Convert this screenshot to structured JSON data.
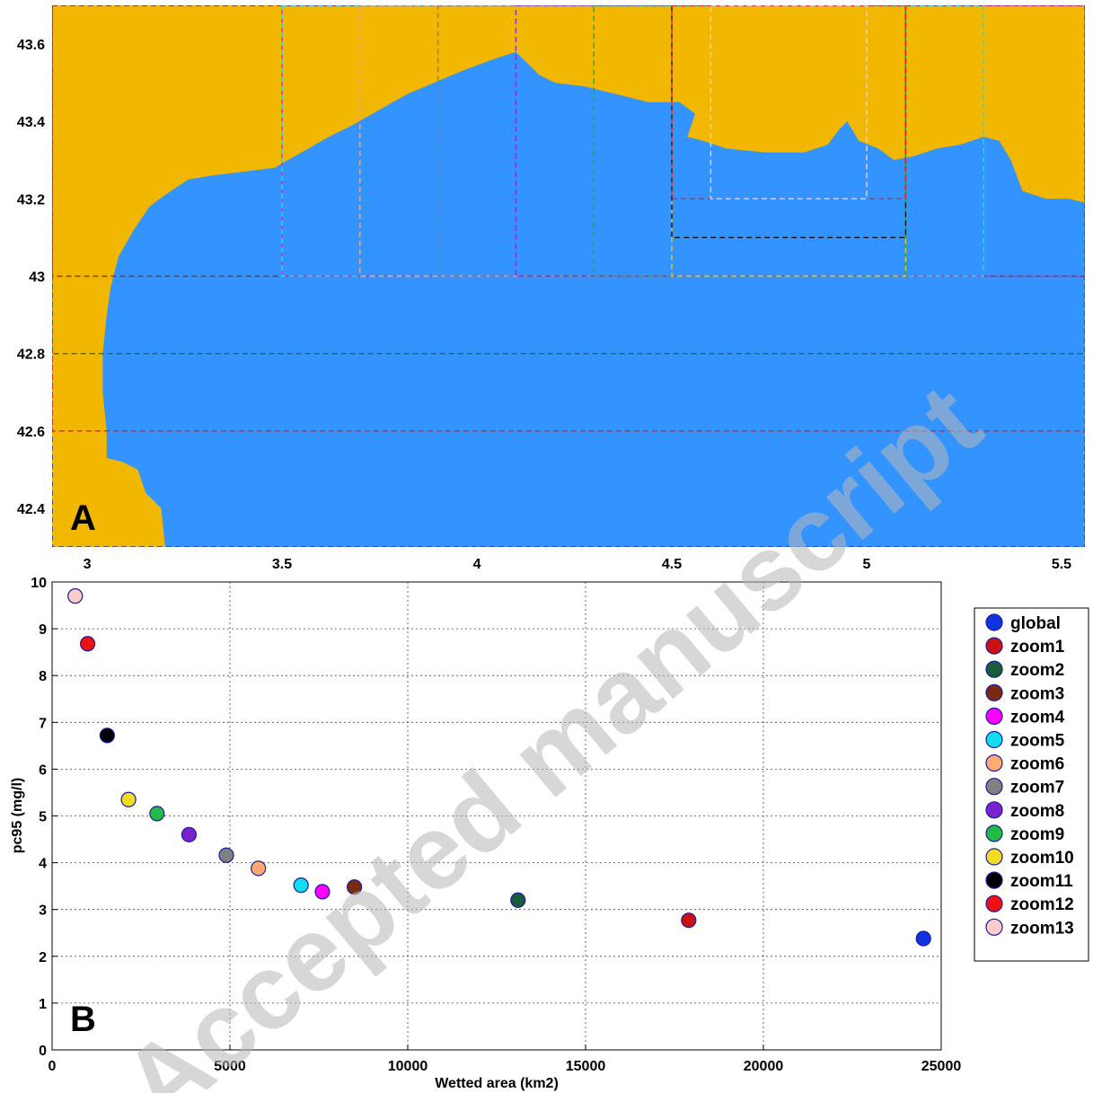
{
  "watermark": "Accepted manuscript",
  "chart_data": [
    {
      "type": "map",
      "panel_label": "A",
      "xlim": [
        2.91,
        5.56
      ],
      "ylim": [
        42.3,
        43.7
      ],
      "xticks": [
        3,
        3.5,
        4,
        4.5,
        5,
        5.5
      ],
      "yticks": [
        42.4,
        42.6,
        42.8,
        43,
        43.2,
        43.4,
        43.6
      ],
      "land_color": "#f2b700",
      "sea_color": "#3393ff",
      "coastline": [
        [
          2.91,
          43.7
        ],
        [
          2.91,
          42.3
        ],
        [
          3.2,
          42.3
        ],
        [
          3.19,
          42.4
        ],
        [
          3.15,
          42.44
        ],
        [
          3.13,
          42.5
        ],
        [
          3.09,
          42.52
        ],
        [
          3.05,
          42.53
        ],
        [
          3.05,
          42.6
        ],
        [
          3.04,
          42.7
        ],
        [
          3.04,
          42.8
        ],
        [
          3.05,
          42.9
        ],
        [
          3.06,
          42.97
        ],
        [
          3.08,
          43.05
        ],
        [
          3.12,
          43.12
        ],
        [
          3.16,
          43.18
        ],
        [
          3.2,
          43.21
        ],
        [
          3.26,
          43.25
        ],
        [
          3.32,
          43.26
        ],
        [
          3.4,
          43.27
        ],
        [
          3.48,
          43.28
        ],
        [
          3.55,
          43.32
        ],
        [
          3.62,
          43.36
        ],
        [
          3.68,
          43.39
        ],
        [
          3.75,
          43.43
        ],
        [
          3.82,
          43.47
        ],
        [
          3.89,
          43.5
        ],
        [
          3.96,
          43.53
        ],
        [
          4.04,
          43.56
        ],
        [
          4.1,
          43.58
        ],
        [
          4.13,
          43.55
        ],
        [
          4.16,
          43.52
        ],
        [
          4.2,
          43.5
        ],
        [
          4.28,
          43.49
        ],
        [
          4.36,
          43.47
        ],
        [
          4.44,
          43.45
        ],
        [
          4.52,
          43.45
        ],
        [
          4.56,
          43.42
        ],
        [
          4.54,
          43.36
        ],
        [
          4.58,
          43.35
        ],
        [
          4.64,
          43.33
        ],
        [
          4.74,
          43.32
        ],
        [
          4.84,
          43.32
        ],
        [
          4.9,
          43.34
        ],
        [
          4.93,
          43.38
        ],
        [
          4.95,
          43.4
        ],
        [
          4.98,
          43.35
        ],
        [
          5.03,
          43.33
        ],
        [
          5.07,
          43.3
        ],
        [
          5.12,
          43.31
        ],
        [
          5.18,
          43.33
        ],
        [
          5.24,
          43.34
        ],
        [
          5.3,
          43.36
        ],
        [
          5.34,
          43.35
        ],
        [
          5.37,
          43.3
        ],
        [
          5.4,
          43.22
        ],
        [
          5.46,
          43.2
        ],
        [
          5.52,
          43.2
        ],
        [
          5.56,
          43.19
        ],
        [
          5.56,
          43.7
        ]
      ],
      "boxes": [
        {
          "color": "#2233aa",
          "lon": [
            2.91,
            5.56
          ],
          "lat": [
            42.3,
            43.7
          ]
        },
        {
          "color": "#dd2222",
          "lon": [
            2.91,
            5.56
          ],
          "lat": [
            42.6,
            43.7
          ]
        },
        {
          "color": "#2a6a2a",
          "lon": [
            2.91,
            5.56
          ],
          "lat": [
            42.8,
            43.7
          ]
        },
        {
          "color": "#8a3a10",
          "lon": [
            2.91,
            5.56
          ],
          "lat": [
            43.0,
            43.7
          ]
        },
        {
          "color": "#dd22dd",
          "lon": [
            3.5,
            5.56
          ],
          "lat": [
            43.0,
            43.7
          ]
        },
        {
          "color": "#22ddee",
          "lon": [
            3.5,
            5.3
          ],
          "lat": [
            43.0,
            43.7
          ]
        },
        {
          "color": "#f0a878",
          "lon": [
            3.7,
            5.1
          ],
          "lat": [
            43.0,
            43.7
          ]
        },
        {
          "color": "#808080",
          "lon": [
            3.9,
            5.1
          ],
          "lat": [
            43.0,
            43.7
          ]
        },
        {
          "color": "#8a2be2",
          "lon": [
            4.1,
            5.1
          ],
          "lat": [
            43.0,
            43.7
          ]
        },
        {
          "color": "#22aa44",
          "lon": [
            4.3,
            5.1
          ],
          "lat": [
            43.0,
            43.7
          ]
        },
        {
          "color": "#ddcc22",
          "lon": [
            4.5,
            5.1
          ],
          "lat": [
            43.0,
            43.7
          ]
        },
        {
          "color": "#111111",
          "lon": [
            4.5,
            5.1
          ],
          "lat": [
            43.1,
            43.7
          ]
        },
        {
          "color": "#ee2222",
          "lon": [
            4.5,
            5.1
          ],
          "lat": [
            43.2,
            43.7
          ]
        },
        {
          "color": "#ffcccc",
          "lon": [
            4.6,
            5.0
          ],
          "lat": [
            43.2,
            43.7
          ]
        }
      ]
    },
    {
      "type": "scatter",
      "panel_label": "B",
      "xlabel": "Wetted area (km2)",
      "ylabel": "pc95 (mg/l)",
      "xlim": [
        0,
        25000
      ],
      "ylim": [
        0,
        10
      ],
      "xticks": [
        0,
        5000,
        10000,
        15000,
        20000,
        25000
      ],
      "yticks": [
        0,
        1,
        2,
        3,
        4,
        5,
        6,
        7,
        8,
        9,
        10
      ],
      "grid": true,
      "legend_position": "outside-right",
      "series": [
        {
          "name": "global",
          "x": 24500,
          "y": 2.38,
          "color": "#1133dd"
        },
        {
          "name": "zoom1",
          "x": 17900,
          "y": 2.77,
          "color": "#cc1111"
        },
        {
          "name": "zoom2",
          "x": 13100,
          "y": 3.2,
          "color": "#1a5c3a"
        },
        {
          "name": "zoom3",
          "x": 8500,
          "y": 3.48,
          "color": "#7a2a10"
        },
        {
          "name": "zoom4",
          "x": 7600,
          "y": 3.38,
          "color": "#ff00ff"
        },
        {
          "name": "zoom5",
          "x": 7000,
          "y": 3.52,
          "color": "#11ddee"
        },
        {
          "name": "zoom6",
          "x": 5800,
          "y": 3.88,
          "color": "#ffaa70"
        },
        {
          "name": "zoom7",
          "x": 4900,
          "y": 4.16,
          "color": "#808080"
        },
        {
          "name": "zoom8",
          "x": 3850,
          "y": 4.6,
          "color": "#7a22cc"
        },
        {
          "name": "zoom9",
          "x": 2950,
          "y": 5.05,
          "color": "#22bb44"
        },
        {
          "name": "zoom10",
          "x": 2150,
          "y": 5.35,
          "color": "#f0dd22"
        },
        {
          "name": "zoom11",
          "x": 1550,
          "y": 6.72,
          "color": "#000000"
        },
        {
          "name": "zoom12",
          "x": 1000,
          "y": 8.68,
          "color": "#ee1111"
        },
        {
          "name": "zoom13",
          "x": 650,
          "y": 9.7,
          "color": "#ffcccc"
        }
      ]
    }
  ]
}
